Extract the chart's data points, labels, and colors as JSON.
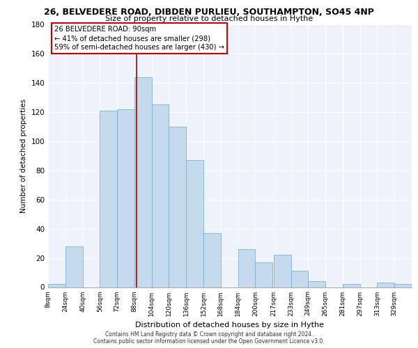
{
  "title": "26, BELVEDERE ROAD, DIBDEN PURLIEU, SOUTHAMPTON, SO45 4NP",
  "subtitle": "Size of property relative to detached houses in Hythe",
  "xlabel": "Distribution of detached houses by size in Hythe",
  "ylabel": "Number of detached properties",
  "bar_color": "#c6daee",
  "bar_edge_color": "#7ab3d4",
  "background_color": "#eef2fa",
  "grid_color": "white",
  "annotation_box_color": "white",
  "annotation_box_edge": "#cc0000",
  "vline_color": "#aa0000",
  "vline_x": 90,
  "annotation_title": "26 BELVEDERE ROAD: 90sqm",
  "annotation_line1": "← 41% of detached houses are smaller (298)",
  "annotation_line2": "59% of semi-detached houses are larger (430) →",
  "bin_lefts": [
    8,
    24,
    40,
    56,
    72,
    88,
    104,
    120,
    136,
    152,
    168,
    184,
    200,
    217,
    233,
    249,
    265,
    281,
    297,
    313,
    329
  ],
  "bin_width": 16,
  "heights": [
    2,
    28,
    0,
    121,
    122,
    144,
    125,
    110,
    87,
    37,
    0,
    26,
    17,
    22,
    11,
    4,
    0,
    2,
    0,
    3,
    2
  ],
  "xlim_left": 8,
  "xlim_right": 345,
  "ylim_top": 180,
  "yticks": [
    0,
    20,
    40,
    60,
    80,
    100,
    120,
    140,
    160,
    180
  ],
  "tick_labels": [
    "8sqm",
    "24sqm",
    "40sqm",
    "56sqm",
    "72sqm",
    "88sqm",
    "104sqm",
    "120sqm",
    "136sqm",
    "152sqm",
    "168sqm",
    "184sqm",
    "200sqm",
    "217sqm",
    "233sqm",
    "249sqm",
    "265sqm",
    "281sqm",
    "297sqm",
    "313sqm",
    "329sqm"
  ],
  "tick_positions": [
    8,
    24,
    40,
    56,
    72,
    88,
    104,
    120,
    136,
    152,
    168,
    184,
    200,
    217,
    233,
    249,
    265,
    281,
    297,
    313,
    329
  ],
  "footer_line1": "Contains HM Land Registry data © Crown copyright and database right 2024.",
  "footer_line2": "Contains public sector information licensed under the Open Government Licence v3.0."
}
